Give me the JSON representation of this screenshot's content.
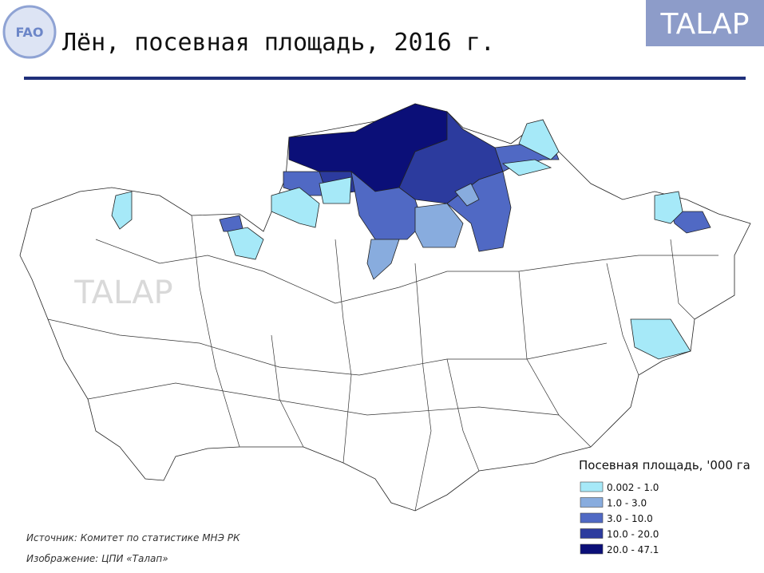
{
  "header": {
    "title": "Лён, посевная площадь, 2016 г.",
    "logo": "TALAP",
    "fao_logo": "FAO"
  },
  "map": {
    "watermark": "TALAP",
    "legend": {
      "title": "Посевная площадь, '000 га",
      "classes": [
        {
          "label": "0.002 - 1.0",
          "color": "#a6e9f8"
        },
        {
          "label": "1.0 - 3.0",
          "color": "#88acde"
        },
        {
          "label": "3.0 - 10.0",
          "color": "#5069c4"
        },
        {
          "label": "10.0 - 20.0",
          "color": "#2c3b9e"
        },
        {
          "label": "20.0 - 47.1",
          "color": "#0b0f78"
        }
      ]
    }
  },
  "footer": {
    "source": "Источник: Комитет по статистике МНЭ РК",
    "credit": "Изображение: ЦПИ «Талап»"
  }
}
